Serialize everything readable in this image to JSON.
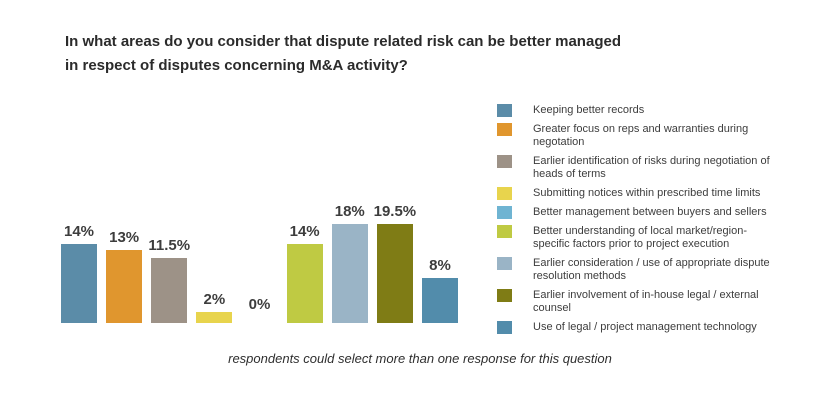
{
  "title": {
    "lines": [
      "In what areas do you consider that dispute related risk can be better managed",
      "in respect of disputes concerning M&A activity?"
    ]
  },
  "footer": "respondents could select more than one response for this question",
  "chart_data": {
    "type": "bar",
    "title": "In what areas do you consider that dispute related risk can be better managed in respect of disputes concerning M&A activity?",
    "categories": [
      "Keeping better records",
      "Greater focus on reps and warranties during negotation",
      "Earlier identification of risks during negotiation of heads of terms",
      "Submitting notices within prescribed time limits",
      "Better management between buyers and sellers",
      "Better understanding of local market/region-specific factors prior to project execution",
      "Earlier consideration / use of appropriate dispute resolution methods",
      "Earlier involvement of in-house legal / external counsel",
      "Use of legal / project management technology"
    ],
    "values": [
      14,
      13,
      11.5,
      2,
      0,
      14,
      18,
      19.5,
      8
    ],
    "value_labels": [
      "14%",
      "13%",
      "11.5%",
      "2%",
      "0%",
      "14%",
      "18%",
      "19.5%",
      "8%"
    ],
    "colors": [
      "#5b8ca8",
      "#e0962e",
      "#9d9287",
      "#e8d44d",
      "#6fb4d2",
      "#bfca43",
      "#9ab4c6",
      "#7f7c15",
      "#528cab"
    ],
    "xlabel": "",
    "ylabel": "",
    "ylim": [
      0,
      22
    ],
    "grid": false,
    "legend_position": "right",
    "note": "respondents could select more than one response for this question"
  },
  "legend": {
    "items": [
      {
        "label": "Keeping better records",
        "color": "#5b8ca8"
      },
      {
        "label": "Greater focus on reps and warranties during\nnegotation",
        "color": "#e0962e"
      },
      {
        "label": "Earlier identification of risks during negotiation of\nheads of terms",
        "color": "#9d9287"
      },
      {
        "label": "Submitting notices within prescribed time limits",
        "color": "#e8d44d"
      },
      {
        "label": "Better management between buyers and sellers",
        "color": "#6fb4d2"
      },
      {
        "label": "Better understanding of local market/region-\nspecific factors prior to project execution",
        "color": "#bfca43"
      },
      {
        "label": "Earlier consideration / use of appropriate dispute\nresolution methods",
        "color": "#9ab4c6"
      },
      {
        "label": "Earlier involvement of in-house legal / external\ncounsel",
        "color": "#7f7c15"
      },
      {
        "label": "Use of legal / project management technology",
        "color": "#528cab"
      }
    ]
  }
}
